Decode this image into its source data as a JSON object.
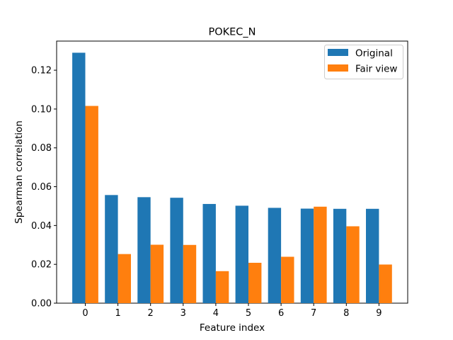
{
  "chart_data": {
    "type": "bar",
    "title": "POKEC_N",
    "xlabel": "Feature index",
    "ylabel": "Spearman correlation",
    "categories": [
      "0",
      "1",
      "2",
      "3",
      "4",
      "5",
      "6",
      "7",
      "8",
      "9"
    ],
    "series": [
      {
        "name": "Original",
        "color": "#1f77b4",
        "values": [
          0.129,
          0.0557,
          0.0546,
          0.0543,
          0.0511,
          0.0502,
          0.0491,
          0.0487,
          0.0486,
          0.0486
        ]
      },
      {
        "name": "Fair view",
        "color": "#ff7f0e",
        "values": [
          0.1016,
          0.0253,
          0.0301,
          0.03,
          0.0165,
          0.0208,
          0.0239,
          0.0497,
          0.0396,
          0.0199
        ]
      }
    ],
    "ylim": [
      0,
      0.135
    ],
    "yticks": [
      "0.00",
      "0.02",
      "0.04",
      "0.06",
      "0.08",
      "0.10",
      "0.12"
    ],
    "grid": false,
    "legend_position": "top-right"
  }
}
